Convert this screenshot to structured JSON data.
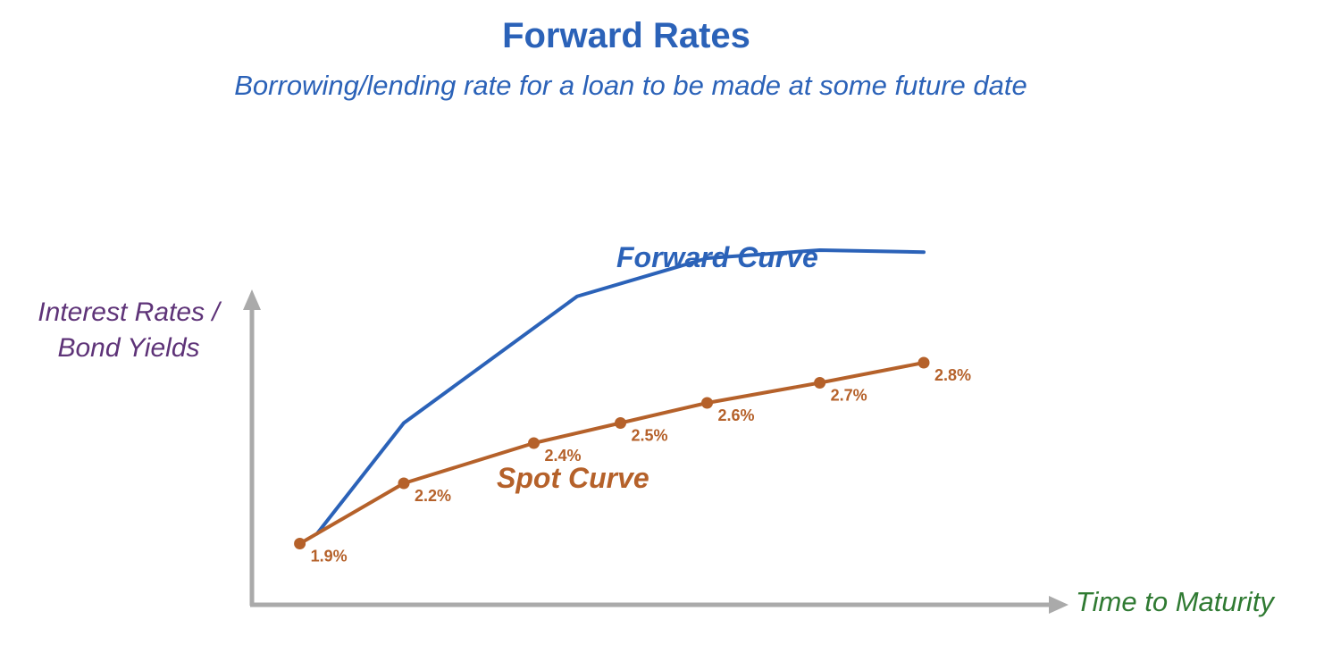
{
  "chart_data": {
    "type": "line",
    "title": "Forward Rates",
    "subtitle": "Borrowing/lending rate for a loan to be made at some future date",
    "xlabel": "Time to Maturity",
    "ylabel_lines": [
      "Interest Rates /",
      "Bond Yields"
    ],
    "grid": false,
    "series": [
      {
        "name": "Forward Curve",
        "color": "#2b62b8",
        "x": [
          1,
          2,
          4,
          5.5,
          6.8,
          8
        ],
        "values": [
          1.95,
          2.5,
          3.13,
          3.32,
          3.36,
          3.35
        ]
      },
      {
        "name": "Spot Curve",
        "color": "#b5612a",
        "x": [
          0.8,
          2,
          3.5,
          4.5,
          5.5,
          6.8,
          8
        ],
        "values": [
          1.9,
          2.2,
          2.4,
          2.5,
          2.6,
          2.7,
          2.8
        ],
        "labels": [
          "1.9%",
          "2.2%",
          "2.4%",
          "2.5%",
          "2.6%",
          "2.7%",
          "2.8%"
        ]
      }
    ]
  }
}
